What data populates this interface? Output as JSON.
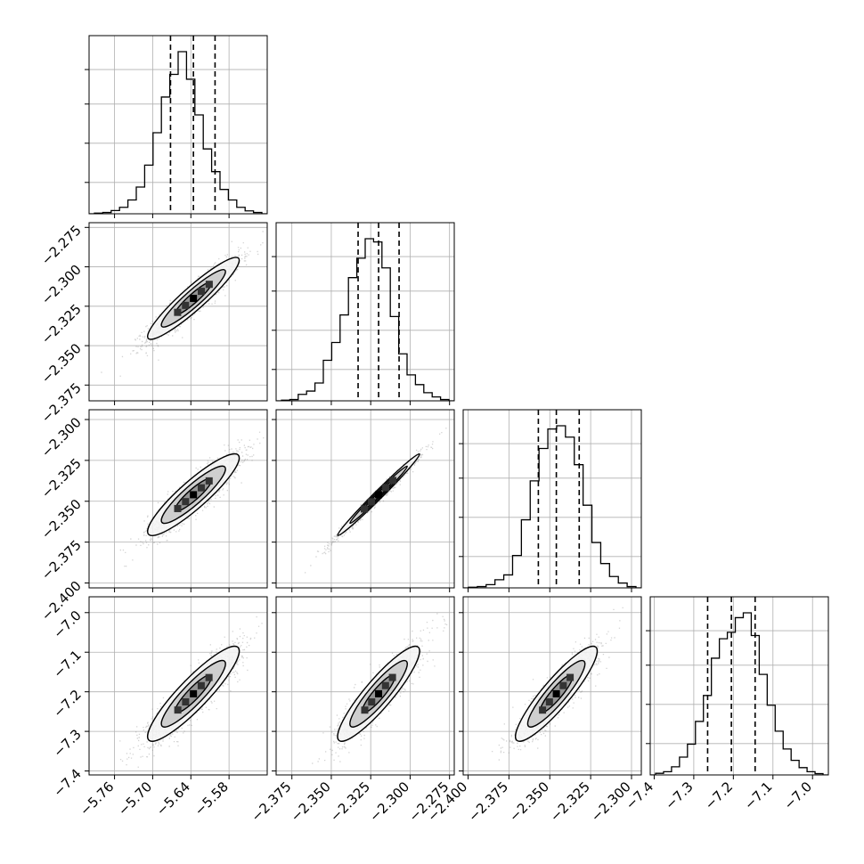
{
  "chart_data": {
    "type": "corner",
    "description_note": "",
    "parameters": [
      {
        "index": 0,
        "range": [
          -5.8,
          -5.52
        ],
        "ticks": [
          -5.76,
          -5.7,
          -5.64,
          -5.58
        ],
        "tick_labels": [
          "−5.76",
          "−5.70",
          "−5.64",
          "−5.58"
        ],
        "quantiles": [
          -5.672,
          -5.636,
          -5.602
        ],
        "histogram": [
          0.004,
          0.008,
          0.02,
          0.04,
          0.085,
          0.165,
          0.3,
          0.5,
          0.72,
          0.86,
          1.0,
          0.83,
          0.61,
          0.4,
          0.26,
          0.15,
          0.085,
          0.04,
          0.018,
          0.008
        ]
      },
      {
        "index": 1,
        "range": [
          -2.385,
          -2.272
        ],
        "ticks": [
          -2.375,
          -2.35,
          -2.325,
          -2.3,
          -2.275
        ],
        "tick_labels": [
          "−2.375",
          "−2.350",
          "−2.325",
          "−2.300",
          "−2.275"
        ],
        "quantiles": [
          -2.333,
          -2.32,
          -2.307
        ],
        "histogram": [
          0.004,
          0.008,
          0.04,
          0.06,
          0.11,
          0.25,
          0.36,
          0.53,
          0.76,
          0.88,
          1.0,
          0.98,
          0.82,
          0.52,
          0.29,
          0.16,
          0.1,
          0.05,
          0.024,
          0.008
        ]
      },
      {
        "index": 2,
        "range": [
          -2.403,
          -2.294
        ],
        "ticks": [
          -2.4,
          -2.375,
          -2.35,
          -2.325,
          -2.3
        ],
        "tick_labels": [
          "−2.400",
          "−2.375",
          "−2.350",
          "−2.325",
          "−2.300"
        ],
        "quantiles": [
          -2.357,
          -2.346,
          -2.332
        ],
        "histogram": [
          0.004,
          0.008,
          0.02,
          0.05,
          0.08,
          0.2,
          0.42,
          0.66,
          0.86,
          0.98,
          1.0,
          0.93,
          0.76,
          0.51,
          0.28,
          0.15,
          0.07,
          0.03,
          0.008
        ]
      },
      {
        "index": 3,
        "range": [
          -7.41,
          -6.96
        ],
        "ticks": [
          -7.4,
          -7.3,
          -7.2,
          -7.1,
          -7.0
        ],
        "tick_labels": [
          "−7.4",
          "−7.3",
          "−7.2",
          "−7.1",
          "−7.0"
        ],
        "quantiles": [
          -7.265,
          -7.205,
          -7.145
        ],
        "histogram": [
          0.01,
          0.02,
          0.05,
          0.11,
          0.19,
          0.33,
          0.49,
          0.72,
          0.84,
          0.88,
          0.97,
          1.0,
          0.86,
          0.62,
          0.43,
          0.27,
          0.16,
          0.09,
          0.045,
          0.02,
          0.008
        ]
      }
    ],
    "correlations": {
      "1-0": 0.93,
      "2-0": 0.9,
      "2-1": 0.99,
      "3-0": 0.9,
      "3-1": 0.9,
      "3-2": 0.9
    },
    "means": [
      -5.636,
      -2.32,
      -2.346,
      -7.205
    ],
    "stds": [
      0.036,
      0.013,
      0.0125,
      0.06
    ],
    "grid": true,
    "scatter_color": "#808080",
    "line_color": "#000000"
  }
}
